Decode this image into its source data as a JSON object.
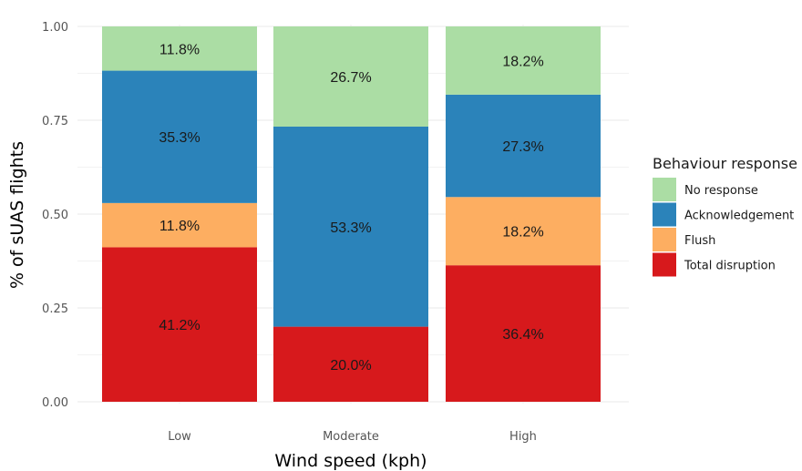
{
  "chart_data": {
    "type": "bar",
    "stacked": true,
    "categories": [
      "Low",
      "Moderate",
      "High"
    ],
    "xlabel": "Wind speed (kph)",
    "ylabel": "% of sUAS flights",
    "ylim": [
      0,
      1
    ],
    "yticks": [
      "0.00",
      "0.25",
      "0.50",
      "0.75",
      "1.00"
    ],
    "grid": true,
    "legend": {
      "title": "Behaviour response",
      "position": "right"
    },
    "series": [
      {
        "name": "Total disruption",
        "color": "#d7191c",
        "values": [
          0.412,
          0.2,
          0.364
        ],
        "labels": [
          "41.2%",
          "20.0%",
          "36.4%"
        ]
      },
      {
        "name": "Flush",
        "color": "#fdae61",
        "values": [
          0.118,
          0.0,
          0.182
        ],
        "labels": [
          "11.8%",
          "",
          "18.2%"
        ]
      },
      {
        "name": "Acknowledgement",
        "color": "#2b83ba",
        "values": [
          0.353,
          0.533,
          0.273
        ],
        "labels": [
          "35.3%",
          "53.3%",
          "27.3%"
        ]
      },
      {
        "name": "No response",
        "color": "#abdda4",
        "values": [
          0.118,
          0.267,
          0.182
        ],
        "labels": [
          "11.8%",
          "26.7%",
          "18.2%"
        ]
      }
    ],
    "legend_order": [
      "No response",
      "Acknowledgement",
      "Flush",
      "Total disruption"
    ]
  }
}
